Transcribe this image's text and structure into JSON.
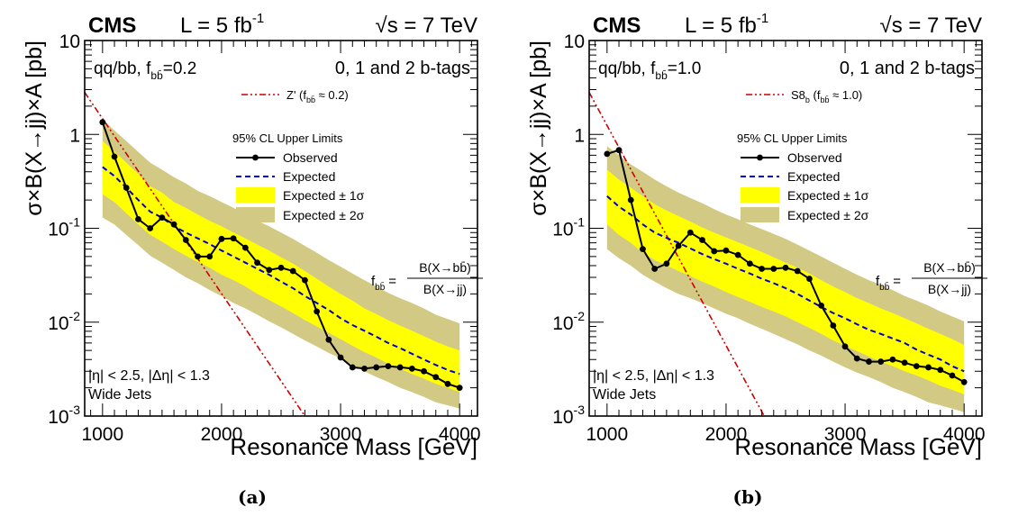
{
  "chart_data": [
    {
      "type": "line",
      "panel_caption": "(a)",
      "header": {
        "experiment": "CMS",
        "lumi": "L = 5 fb",
        "lumi_exp": "-1",
        "energy": "√s = 7 TeV"
      },
      "channel": "qq/bb, f",
      "channel_sub": "bb̄",
      "channel_val": "=0.2",
      "btags": "0, 1 and 2 b-tags",
      "model_label": "Z' (f",
      "model_sub": "bb̄",
      "model_val": " ≈ 0.2)",
      "legend_title": "95% CL Upper Limits",
      "legend": [
        "Observed",
        "Expected",
        "Expected ± 1σ",
        "Expected ± 2σ"
      ],
      "formula": {
        "lhs": "f",
        "lhs_sub": "bb̄",
        "eq": "=",
        "num": "B(X→bb̄)",
        "den": "B(X→jj)"
      },
      "cuts": "|η| < 2.5, |Δη| < 1.3",
      "jets": "Wide Jets",
      "xlabel": "Resonance Mass [GeV]",
      "ylabel": "σ×B(X→jj)×A [pb]",
      "xlim": [
        850,
        4150
      ],
      "ylim": [
        0.001,
        10
      ],
      "yscale": "log",
      "xticks": [
        1000,
        2000,
        3000,
        4000
      ],
      "yticks": [
        {
          "v": 0.001,
          "base": "10",
          "exp": "-3"
        },
        {
          "v": 0.01,
          "base": "10",
          "exp": "-2"
        },
        {
          "v": 0.1,
          "base": "10",
          "exp": "-1"
        },
        {
          "v": 1,
          "base": "1",
          "exp": ""
        },
        {
          "v": 10,
          "base": "10",
          "exp": ""
        }
      ],
      "x": [
        1000,
        1100,
        1200,
        1300,
        1400,
        1500,
        1600,
        1700,
        1800,
        1900,
        2000,
        2100,
        2200,
        2300,
        2400,
        2500,
        2600,
        2700,
        2800,
        2900,
        3000,
        3100,
        3200,
        3300,
        3400,
        3500,
        3600,
        3700,
        3800,
        3900,
        4000
      ],
      "observed": [
        1.35,
        0.58,
        0.27,
        0.125,
        0.1,
        0.13,
        0.11,
        0.075,
        0.05,
        0.05,
        0.077,
        0.078,
        0.062,
        0.043,
        0.036,
        0.038,
        0.035,
        0.028,
        0.013,
        0.0065,
        0.0042,
        0.0033,
        0.0032,
        0.0033,
        0.0034,
        0.0033,
        0.0032,
        0.003,
        0.0026,
        0.0022,
        0.002
      ],
      "expected": [
        0.45,
        0.36,
        0.27,
        0.2,
        0.15,
        0.13,
        0.105,
        0.09,
        0.078,
        0.068,
        0.058,
        0.05,
        0.043,
        0.037,
        0.032,
        0.027,
        0.023,
        0.019,
        0.016,
        0.0135,
        0.011,
        0.0093,
        0.0081,
        0.007,
        0.006,
        0.0053,
        0.0046,
        0.004,
        0.0035,
        0.0031,
        0.0028
      ],
      "band1_low": [
        0.23,
        0.19,
        0.145,
        0.11,
        0.085,
        0.072,
        0.06,
        0.051,
        0.044,
        0.038,
        0.032,
        0.028,
        0.024,
        0.02,
        0.0172,
        0.0147,
        0.0125,
        0.0105,
        0.009,
        0.0077,
        0.0066,
        0.0056,
        0.0048,
        0.0042,
        0.0036,
        0.0032,
        0.0028,
        0.0025,
        0.0022,
        0.002,
        0.0018
      ],
      "band1_high": [
        0.85,
        0.66,
        0.5,
        0.38,
        0.28,
        0.24,
        0.19,
        0.165,
        0.14,
        0.12,
        0.105,
        0.09,
        0.078,
        0.067,
        0.058,
        0.049,
        0.042,
        0.035,
        0.029,
        0.024,
        0.02,
        0.017,
        0.014,
        0.0122,
        0.0105,
        0.0092,
        0.0081,
        0.0071,
        0.0062,
        0.0055,
        0.005
      ],
      "band2_low": [
        0.13,
        0.11,
        0.085,
        0.066,
        0.051,
        0.043,
        0.036,
        0.03,
        0.026,
        0.022,
        0.019,
        0.016,
        0.014,
        0.012,
        0.0102,
        0.0088,
        0.0075,
        0.0064,
        0.0055,
        0.0047,
        0.0041,
        0.0035,
        0.003,
        0.0026,
        0.0023,
        0.002,
        0.0018,
        0.0016,
        0.0014,
        0.0013,
        0.0012
      ],
      "band2_high": [
        1.45,
        1.1,
        0.85,
        0.65,
        0.5,
        0.42,
        0.35,
        0.3,
        0.25,
        0.22,
        0.19,
        0.165,
        0.14,
        0.12,
        0.105,
        0.09,
        0.077,
        0.065,
        0.055,
        0.046,
        0.039,
        0.033,
        0.028,
        0.024,
        0.0205,
        0.018,
        0.016,
        0.014,
        0.012,
        0.0108,
        0.0097
      ],
      "model_curve": {
        "x": [
          850,
          2700
        ],
        "y": [
          2.8,
          0.001
        ]
      },
      "colors": {
        "band1": "#ffff00",
        "band2": "#d2c985",
        "expected": "#0000cc",
        "model": "#cc0000",
        "observed": "#000000"
      }
    },
    {
      "type": "line",
      "panel_caption": "(b)",
      "header": {
        "experiment": "CMS",
        "lumi": "L = 5 fb",
        "lumi_exp": "-1",
        "energy": "√s = 7 TeV"
      },
      "channel": "qq/bb, f",
      "channel_sub": "bb̄",
      "channel_val": "=1.0",
      "btags": "0, 1 and 2 b-tags",
      "model_label": "S8",
      "model_label_sub": "b",
      "model_label2": " (f",
      "model_sub": "bb̄",
      "model_val": " ≈ 1.0)",
      "legend_title": "95% CL Upper Limits",
      "legend": [
        "Observed",
        "Expected",
        "Expected ± 1σ",
        "Expected ± 2σ"
      ],
      "formula": {
        "lhs": "f",
        "lhs_sub": "bb̄",
        "eq": "=",
        "num": "B(X→bb̄)",
        "den": "B(X→jj)"
      },
      "cuts": "|η| < 2.5, |Δη| < 1.3",
      "jets": "Wide Jets",
      "xlabel": "Resonance Mass [GeV]",
      "ylabel": "σ×B(X→jj)×A [pb]",
      "xlim": [
        850,
        4150
      ],
      "ylim": [
        0.001,
        10
      ],
      "yscale": "log",
      "xticks": [
        1000,
        2000,
        3000,
        4000
      ],
      "yticks": [
        {
          "v": 0.001,
          "base": "10",
          "exp": "-3"
        },
        {
          "v": 0.01,
          "base": "10",
          "exp": "-2"
        },
        {
          "v": 0.1,
          "base": "10",
          "exp": "-1"
        },
        {
          "v": 1,
          "base": "1",
          "exp": ""
        },
        {
          "v": 10,
          "base": "10",
          "exp": ""
        }
      ],
      "x": [
        1000,
        1100,
        1200,
        1300,
        1400,
        1500,
        1600,
        1700,
        1800,
        1900,
        2000,
        2100,
        2200,
        2300,
        2400,
        2500,
        2600,
        2700,
        2800,
        2900,
        3000,
        3100,
        3200,
        3300,
        3400,
        3500,
        3600,
        3700,
        3800,
        3900,
        4000
      ],
      "observed": [
        0.62,
        0.68,
        0.2,
        0.06,
        0.037,
        0.042,
        0.065,
        0.09,
        0.075,
        0.057,
        0.058,
        0.052,
        0.042,
        0.037,
        0.037,
        0.038,
        0.035,
        0.029,
        0.015,
        0.0092,
        0.0055,
        0.0041,
        0.0038,
        0.0038,
        0.004,
        0.0037,
        0.0034,
        0.0033,
        0.0031,
        0.0027,
        0.0023
      ],
      "expected": [
        0.22,
        0.17,
        0.14,
        0.11,
        0.09,
        0.079,
        0.07,
        0.061,
        0.053,
        0.047,
        0.042,
        0.037,
        0.033,
        0.029,
        0.026,
        0.023,
        0.02,
        0.017,
        0.0145,
        0.0125,
        0.011,
        0.0095,
        0.0083,
        0.0075,
        0.0067,
        0.006,
        0.0051,
        0.0045,
        0.004,
        0.0034,
        0.003
      ],
      "band1_low": [
        0.11,
        0.085,
        0.07,
        0.055,
        0.046,
        0.04,
        0.035,
        0.031,
        0.027,
        0.024,
        0.021,
        0.0185,
        0.0165,
        0.0145,
        0.013,
        0.0115,
        0.01,
        0.0087,
        0.0075,
        0.0064,
        0.0056,
        0.0049,
        0.0043,
        0.0038,
        0.0034,
        0.003,
        0.0027,
        0.0024,
        0.0021,
        0.0019,
        0.0017
      ],
      "band1_high": [
        0.42,
        0.33,
        0.27,
        0.22,
        0.18,
        0.155,
        0.135,
        0.118,
        0.102,
        0.09,
        0.08,
        0.071,
        0.063,
        0.056,
        0.049,
        0.043,
        0.038,
        0.033,
        0.028,
        0.024,
        0.021,
        0.018,
        0.016,
        0.014,
        0.0125,
        0.011,
        0.0097,
        0.0085,
        0.0075,
        0.0066,
        0.0057
      ],
      "band2_low": [
        0.06,
        0.048,
        0.04,
        0.032,
        0.027,
        0.023,
        0.02,
        0.018,
        0.016,
        0.014,
        0.0123,
        0.011,
        0.0096,
        0.0085,
        0.0075,
        0.0066,
        0.0058,
        0.005,
        0.0044,
        0.0038,
        0.0033,
        0.0029,
        0.0026,
        0.0023,
        0.002,
        0.0018,
        0.0016,
        0.0014,
        0.0013,
        0.0012,
        0.0011
      ],
      "band2_high": [
        0.75,
        0.6,
        0.48,
        0.4,
        0.33,
        0.28,
        0.24,
        0.21,
        0.185,
        0.16,
        0.14,
        0.125,
        0.11,
        0.098,
        0.087,
        0.077,
        0.067,
        0.058,
        0.05,
        0.043,
        0.037,
        0.032,
        0.028,
        0.025,
        0.022,
        0.019,
        0.017,
        0.015,
        0.013,
        0.0115,
        0.0102
      ],
      "model_curve": {
        "x": [
          850,
          2320
        ],
        "y": [
          2.8,
          0.001
        ]
      },
      "colors": {
        "band1": "#ffff00",
        "band2": "#d2c985",
        "expected": "#0000cc",
        "model": "#cc0000",
        "observed": "#000000"
      }
    }
  ]
}
